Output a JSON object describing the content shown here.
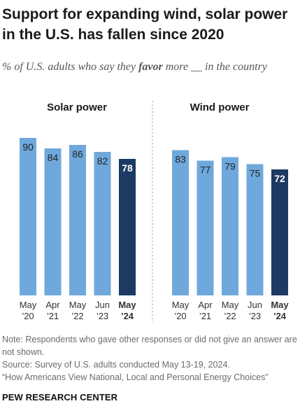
{
  "title": "Support for expanding wind, solar power in the U.S. has fallen since 2020",
  "subtitle": {
    "before": "% of U.S. adults who say they ",
    "emphasis": "favor",
    "after": " more __ in the country"
  },
  "note": "Note: Respondents who gave other responses or did not give an answer are not shown.",
  "source": "Source: Survey of U.S. adults conducted May 13-19, 2024.",
  "report_title": "“How Americans View National, Local and Personal Energy Choices”",
  "footer": "PEW RESEARCH CENTER",
  "colors": {
    "bar": "#6fa8dc",
    "highlight": "#1c3a63",
    "divider": "#9a9a9a"
  },
  "chart_data": [
    {
      "type": "bar",
      "title": "Solar power",
      "categories": [
        [
          "May",
          "’20"
        ],
        [
          "Apr",
          "’21"
        ],
        [
          "May",
          "’22"
        ],
        [
          "Jun",
          "’23"
        ],
        [
          "May",
          "’24"
        ]
      ],
      "values": [
        90,
        84,
        86,
        82,
        78
      ],
      "highlight_index": 4,
      "ylim": [
        0,
        100
      ]
    },
    {
      "type": "bar",
      "title": "Wind power",
      "categories": [
        [
          "May",
          "’20"
        ],
        [
          "Apr",
          "’21"
        ],
        [
          "May",
          "’22"
        ],
        [
          "Jun",
          "’23"
        ],
        [
          "May",
          "’24"
        ]
      ],
      "values": [
        83,
        77,
        79,
        75,
        72
      ],
      "highlight_index": 4,
      "ylim": [
        0,
        100
      ]
    }
  ]
}
